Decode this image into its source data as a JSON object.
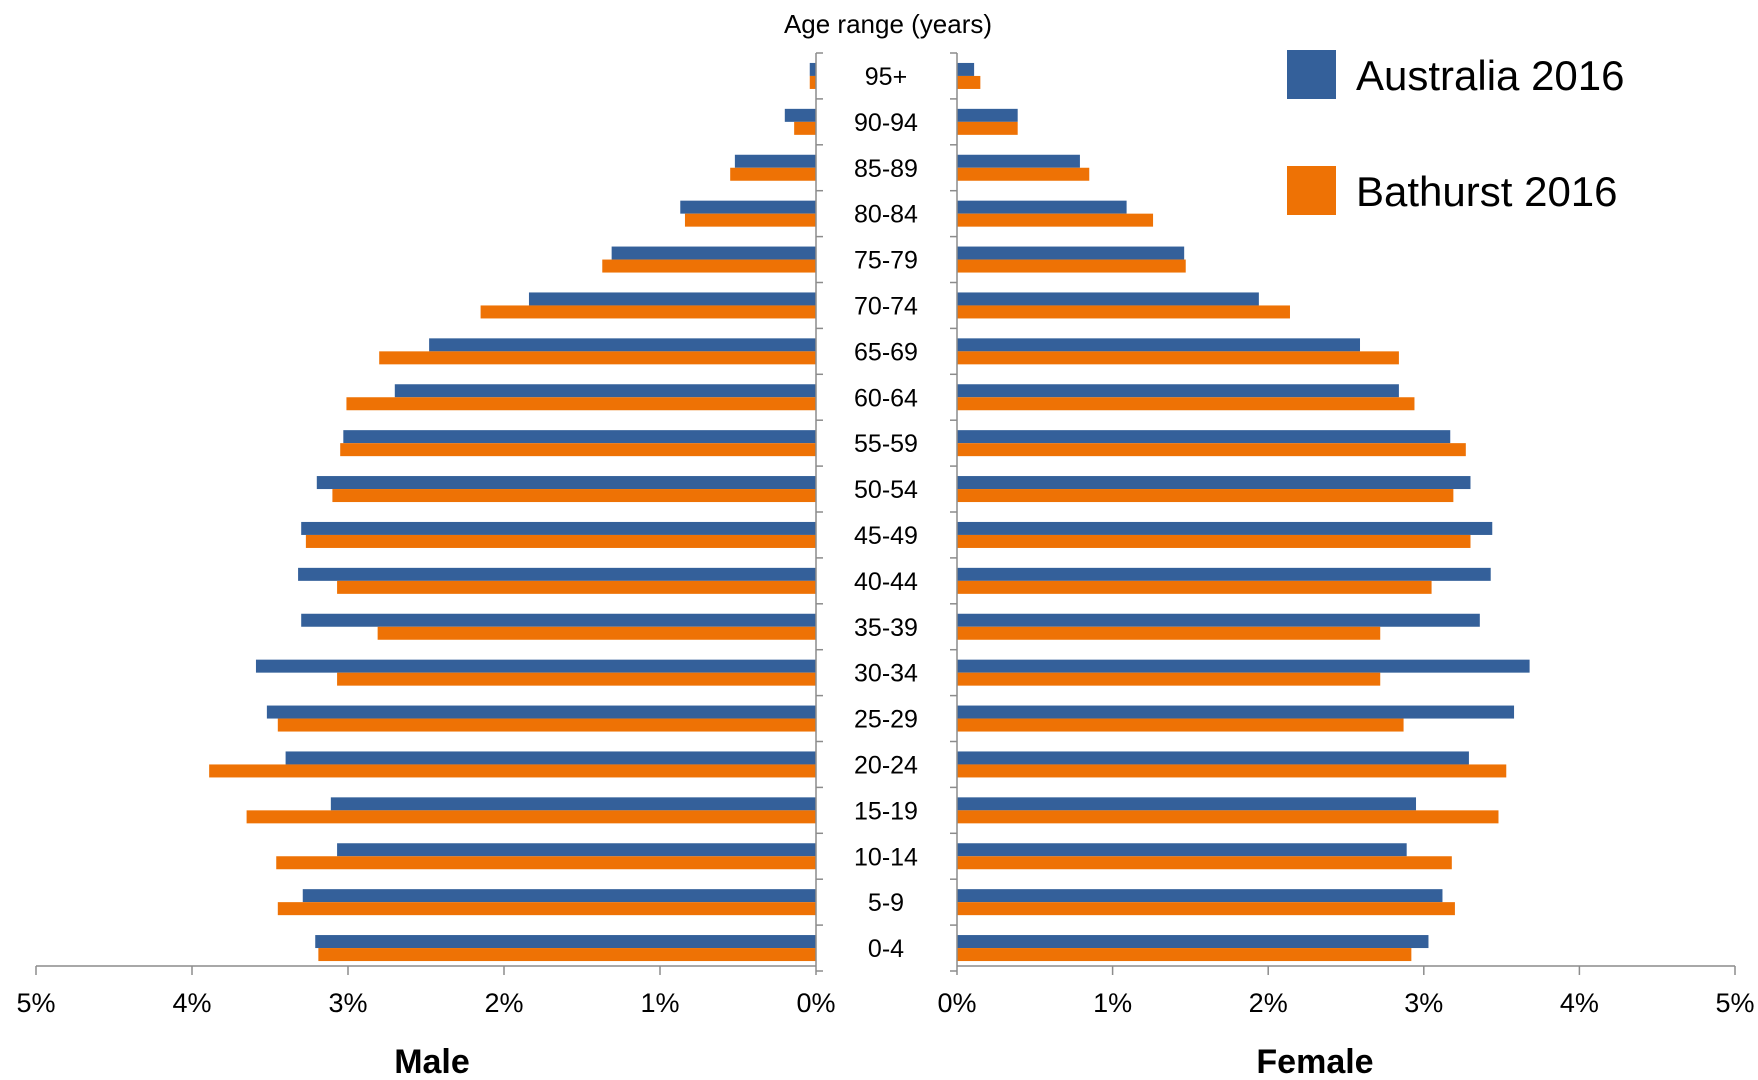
{
  "chart_data": {
    "type": "bar",
    "orientation": "horizontal-pyramid",
    "title": "Age range (years)",
    "categories": [
      "95+",
      "90-94",
      "85-89",
      "80-84",
      "75-79",
      "70-74",
      "65-69",
      "60-64",
      "55-59",
      "50-54",
      "45-49",
      "40-44",
      "35-39",
      "30-34",
      "25-29",
      "20-24",
      "15-19",
      "10-14",
      "5-9",
      "0-4"
    ],
    "left_panel": {
      "label": "Male",
      "xlim": [
        0,
        5
      ],
      "ticks": [
        "5%",
        "4%",
        "3%",
        "2%",
        "1%",
        "0%"
      ],
      "series": [
        {
          "name": "Australia 2016",
          "color": "#34609a",
          "values": [
            0.04,
            0.2,
            0.52,
            0.87,
            1.31,
            1.84,
            2.48,
            2.7,
            3.03,
            3.2,
            3.3,
            3.32,
            3.3,
            3.59,
            3.52,
            3.4,
            3.11,
            3.07,
            3.29,
            3.21
          ]
        },
        {
          "name": "Bathurst 2016",
          "color": "#ee7205",
          "values": [
            0.04,
            0.14,
            0.55,
            0.84,
            1.37,
            2.15,
            2.8,
            3.01,
            3.05,
            3.1,
            3.27,
            3.07,
            2.81,
            3.07,
            3.45,
            3.89,
            3.65,
            3.46,
            3.45,
            3.19
          ]
        }
      ]
    },
    "right_panel": {
      "label": "Female",
      "xlim": [
        0,
        5
      ],
      "ticks": [
        "0%",
        "1%",
        "2%",
        "3%",
        "4%",
        "5%"
      ],
      "series": [
        {
          "name": "Australia 2016",
          "color": "#34609a",
          "values": [
            0.11,
            0.39,
            0.79,
            1.09,
            1.46,
            1.94,
            2.59,
            2.84,
            3.17,
            3.3,
            3.44,
            3.43,
            3.36,
            3.68,
            3.58,
            3.29,
            2.95,
            2.89,
            3.12,
            3.03
          ]
        },
        {
          "name": "Bathurst 2016",
          "color": "#ee7205",
          "values": [
            0.15,
            0.39,
            0.85,
            1.26,
            1.47,
            2.14,
            2.84,
            2.94,
            3.27,
            3.19,
            3.3,
            3.05,
            2.72,
            2.72,
            2.87,
            3.53,
            3.48,
            3.18,
            3.2,
            2.92
          ]
        }
      ]
    },
    "legend": {
      "position": "top-right",
      "entries": [
        {
          "name": "Australia 2016",
          "color": "#34609a"
        },
        {
          "name": "Bathurst 2016",
          "color": "#ee7205"
        }
      ]
    },
    "grid": false
  }
}
